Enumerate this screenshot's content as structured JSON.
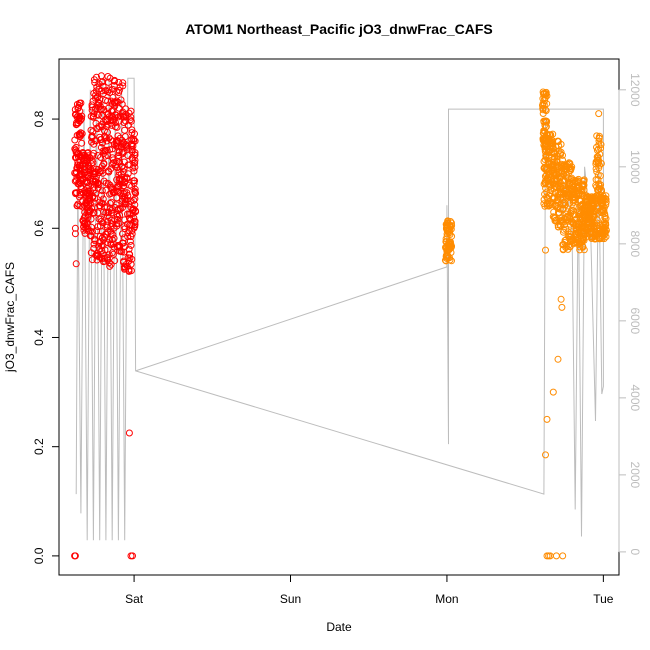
{
  "chart_data": {
    "type": "scatter",
    "title": "ATOM1 Northeast_Pacific jO3_dnwFrac_CAFS",
    "xlabel": "Date",
    "ylabel": "jO3_dnwFrac_CAFS",
    "x_ticks": [
      "Sat",
      "Sun",
      "Mon",
      "Tue"
    ],
    "x_tick_values": [
      1.0,
      2.0,
      3.0,
      4.0
    ],
    "xlim": [
      0.52,
      4.1
    ],
    "ylim": [
      -0.035,
      0.91
    ],
    "y_ticks": [
      0.0,
      0.2,
      0.4,
      0.6,
      0.8
    ],
    "y_tick_labels": [
      "0.0",
      "0.2",
      "0.4",
      "0.6",
      "0.8"
    ],
    "right_axis": {
      "ylim": [
        -600,
        12800
      ],
      "ticks": [
        0,
        2000,
        4000,
        6000,
        8000,
        10000,
        12000
      ],
      "tick_labels": [
        "0",
        "2000",
        "4000",
        "6000",
        "8000",
        "10000",
        "12000"
      ],
      "color": "#bdbdbd"
    },
    "grid": false,
    "legend": "none",
    "colors": {
      "series1": "#ff0000",
      "series2": "#ff8c00",
      "line": "#bdbdbd"
    },
    "series": [
      {
        "values_shown": "clustered scatter ≈0.52–0.89",
        "x_range": [
          0.62,
          1.01
        ],
        "outliers": [
          [
            0.62,
            0.0
          ],
          [
            0.625,
            0.0
          ],
          [
            0.63,
            0.535
          ],
          [
            0.625,
            0.59
          ],
          [
            0.625,
            0.6
          ],
          [
            0.97,
            0.225
          ],
          [
            0.98,
            0.0
          ],
          [
            0.99,
            0.0
          ]
        ],
        "bands": [
          [
            0.62,
            0.67,
            0.64,
            0.83
          ],
          [
            0.67,
            0.72,
            0.59,
            0.74
          ],
          [
            0.72,
            0.8,
            0.54,
            0.88
          ],
          [
            0.8,
            0.86,
            0.53,
            0.89
          ],
          [
            0.86,
            0.93,
            0.54,
            0.88
          ],
          [
            0.93,
            0.99,
            0.52,
            0.82
          ],
          [
            0.99,
            1.01,
            0.6,
            0.78
          ]
        ]
      },
      {
        "values_shown": "clustered scatter",
        "x_range": [
          2.98,
          4.02
        ],
        "outliers": [
          [
            3.62,
            0.645
          ],
          [
            3.63,
            0.56
          ],
          [
            3.64,
            0.25
          ],
          [
            3.63,
            0.185
          ],
          [
            3.64,
            0.0
          ],
          [
            3.65,
            0.0
          ],
          [
            3.66,
            0.0
          ],
          [
            3.68,
            0.3
          ],
          [
            3.71,
            0.36
          ],
          [
            3.73,
            0.47
          ],
          [
            3.735,
            0.455
          ],
          [
            3.7,
            0.0
          ],
          [
            3.74,
            0.0
          ],
          [
            3.97,
            0.81
          ]
        ],
        "bands": [
          [
            2.99,
            3.03,
            0.54,
            0.62
          ],
          [
            3.61,
            3.64,
            0.75,
            0.85
          ],
          [
            3.62,
            3.68,
            0.64,
            0.78
          ],
          [
            3.68,
            3.74,
            0.6,
            0.76
          ],
          [
            3.74,
            3.8,
            0.56,
            0.72
          ],
          [
            3.8,
            3.88,
            0.56,
            0.69
          ],
          [
            3.88,
            3.95,
            0.58,
            0.66
          ],
          [
            3.95,
            3.99,
            0.58,
            0.77
          ],
          [
            3.99,
            4.02,
            0.58,
            0.66
          ]
        ]
      }
    ],
    "right_line": {
      "points": [
        [
          0.63,
          1500
        ],
        [
          0.64,
          9800
        ],
        [
          0.66,
          1000
        ],
        [
          0.68,
          11500
        ],
        [
          0.7,
          300
        ],
        [
          0.72,
          12000
        ],
        [
          0.74,
          300
        ],
        [
          0.76,
          12300
        ],
        [
          0.78,
          300
        ],
        [
          0.8,
          12300
        ],
        [
          0.82,
          300
        ],
        [
          0.84,
          12300
        ],
        [
          0.86,
          300
        ],
        [
          0.88,
          12100
        ],
        [
          0.9,
          300
        ],
        [
          0.92,
          12000
        ],
        [
          0.94,
          300
        ],
        [
          0.96,
          12300
        ],
        [
          1.0,
          12300
        ],
        [
          1.01,
          4700
        ],
        [
          3.62,
          1500
        ],
        [
          3.63,
          11200
        ],
        [
          3.66,
          9500
        ],
        [
          3.7,
          9800
        ],
        [
          3.74,
          8600
        ],
        [
          3.76,
          9800
        ],
        [
          3.8,
          8300
        ],
        [
          3.82,
          1100
        ],
        [
          3.84,
          9400
        ],
        [
          3.86,
          400
        ],
        [
          3.88,
          10000
        ],
        [
          3.9,
          9200
        ],
        [
          3.92,
          8200
        ],
        [
          3.95,
          3400
        ],
        [
          3.97,
          10300
        ],
        [
          3.99,
          4100
        ],
        [
          4.0,
          4300
        ],
        [
          4.0,
          11500
        ],
        [
          3.01,
          11500
        ],
        [
          3.01,
          2800
        ],
        [
          3.0,
          9000
        ],
        [
          3.0,
          7400
        ],
        [
          1.01,
          4700
        ]
      ]
    }
  }
}
